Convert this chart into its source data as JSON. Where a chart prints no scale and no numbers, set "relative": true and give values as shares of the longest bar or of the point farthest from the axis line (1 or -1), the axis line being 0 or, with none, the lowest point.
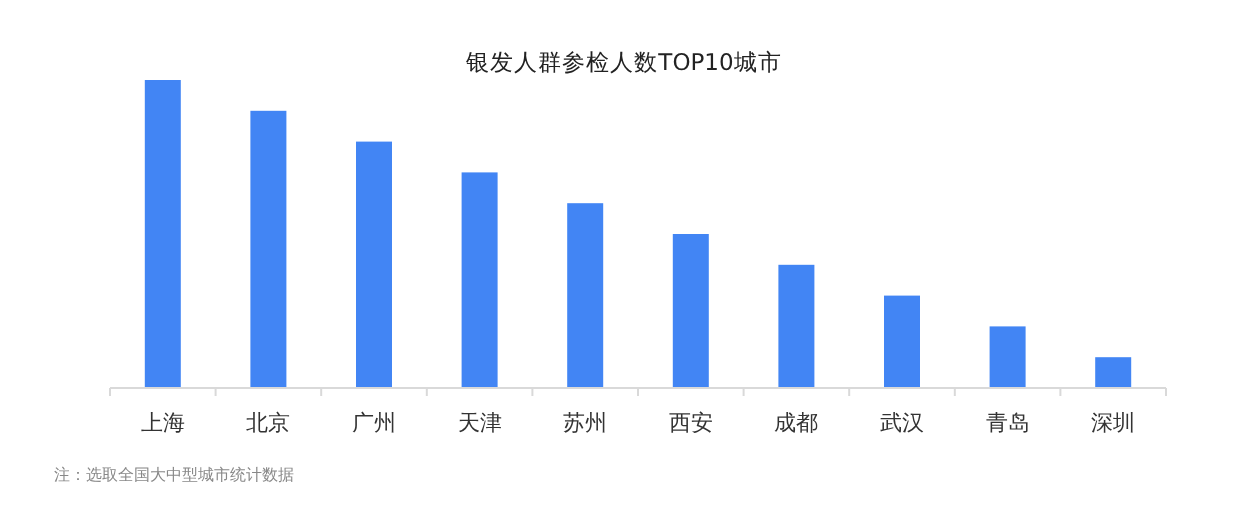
{
  "chart_data": {
    "type": "bar",
    "title": "银发人群参检人数TOP10城市",
    "relative": true,
    "color": "#4285f4",
    "categories": [
      "上海",
      "北京",
      "广州",
      "天津",
      "苏州",
      "西安",
      "成都",
      "武汉",
      "青岛",
      "深圳"
    ],
    "values": [
      1,
      0.9,
      0.8,
      0.7,
      0.6,
      0.5,
      0.4,
      0.3,
      0.2,
      0.1
    ],
    "annotations": [
      "注：选取全国大中型城市统计数据"
    ]
  }
}
